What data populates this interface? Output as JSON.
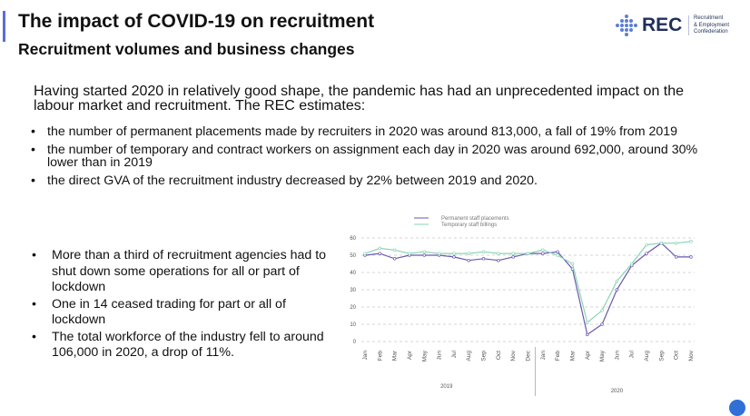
{
  "header": {
    "title": "The impact of COVID-19 on recruitment",
    "subtitle": "Recruitment volumes and business changes"
  },
  "logo": {
    "name": "REC",
    "line1": "Recruitment",
    "line2": "& Employment",
    "line3": "Confederation",
    "dot_color": "#5b7fd6"
  },
  "content": {
    "intro": "Having started 2020 in relatively good shape, the pandemic has had an unprecedented impact on the labour market and recruitment. The REC estimates:",
    "top_bullets": [
      "the number of permanent placements made by recruiters in 2020 was around 813,000, a fall of 19% from 2019",
      "the number of temporary and contract workers on assignment each day in 2020 was around 692,000, around 30% lower than in 2019",
      "the direct GVA of the recruitment industry decreased by 22% between 2019 and 2020."
    ],
    "left_bullets": [
      "More than a third of recruitment agencies had to shut down some operations for all or part of lockdown",
      "One in 14 ceased trading for part or all of lockdown",
      "The total workforce of the industry fell to around 106,000 in 2020, a drop of 11%."
    ]
  },
  "chart_data": {
    "type": "line",
    "x": [
      "Jan",
      "Feb",
      "Mar",
      "Apr",
      "May",
      "Jun",
      "Jul",
      "Aug",
      "Sep",
      "Oct",
      "Nov",
      "Dec",
      "Jan",
      "Feb",
      "Mar",
      "Apr",
      "May",
      "Jun",
      "Jul",
      "Aug",
      "Sep",
      "Oct",
      "Nov"
    ],
    "year_labels": [
      "2019",
      "2020"
    ],
    "series": [
      {
        "name": "Permanent staff placements",
        "color": "#6a58b0",
        "values": [
          50,
          51,
          48,
          50,
          50,
          50,
          49,
          47,
          48,
          47,
          49,
          51,
          51,
          52,
          42,
          4,
          10,
          30,
          44,
          51,
          57,
          49,
          49
        ]
      },
      {
        "name": "Temporary staff billings",
        "color": "#8ad4b4",
        "values": [
          51,
          54,
          53,
          51,
          52,
          51,
          51,
          51,
          52,
          51,
          51,
          51,
          53,
          50,
          45,
          11,
          18,
          35,
          45,
          56,
          57,
          57,
          58
        ]
      }
    ],
    "yticks": [
      0,
      10,
      20,
      30,
      40,
      50,
      60
    ],
    "ylim": [
      0,
      60
    ],
    "grid": true,
    "legend_position": "top"
  }
}
